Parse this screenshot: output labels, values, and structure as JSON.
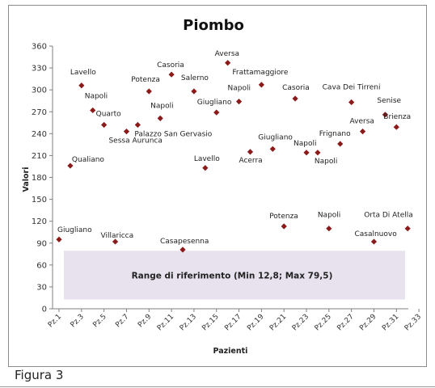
{
  "chart_data": {
    "type": "scatter",
    "title": "Piombo",
    "xlabel": "Pazienti",
    "ylabel": "Valori",
    "ylim": [
      0,
      360
    ],
    "y_ticks": [
      0,
      30,
      60,
      90,
      120,
      150,
      180,
      210,
      240,
      270,
      300,
      330,
      360
    ],
    "x_tick_labels": [
      "Pz.1",
      "Pz.3",
      "Pz.5",
      "Pz.7",
      "Pz.9",
      "Pz.11",
      "Pz.13",
      "Pz.15",
      "Pz.17",
      "Pz.19",
      "Pz.21",
      "Pz.23",
      "Pz.25",
      "Pz.27",
      "Pz.29",
      "Pz.31",
      "Pz.33"
    ],
    "grid": false,
    "marker_color": "#8b1a1a",
    "reference_band": {
      "label": "Range di riferimento (Min 12,8; Max 79,5)",
      "min": 12.8,
      "max": 79.5,
      "color": "#e8e2ef"
    },
    "points": [
      {
        "x": 1,
        "y": 95,
        "label": "Giugliano"
      },
      {
        "x": 2,
        "y": 196,
        "label": "Qualiano"
      },
      {
        "x": 3,
        "y": 306,
        "label": "Lavello"
      },
      {
        "x": 4,
        "y": 272,
        "label": "Napoli"
      },
      {
        "x": 5,
        "y": 252,
        "label": "Quarto"
      },
      {
        "x": 6,
        "y": 92,
        "label": "Villaricca"
      },
      {
        "x": 7,
        "y": 243,
        "label": "Sessa Aurunca"
      },
      {
        "x": 8,
        "y": 252,
        "label": "Palazzo San Gervasio"
      },
      {
        "x": 9,
        "y": 298,
        "label": "Potenza"
      },
      {
        "x": 10,
        "y": 261,
        "label": "Napoli"
      },
      {
        "x": 11,
        "y": 321,
        "label": "Casoria"
      },
      {
        "x": 12,
        "y": 81,
        "label": "Casapesenna"
      },
      {
        "x": 13,
        "y": 298,
        "label": "Salerno"
      },
      {
        "x": 14,
        "y": 193,
        "label": "Lavello"
      },
      {
        "x": 15,
        "y": 269,
        "label": "Giugliano"
      },
      {
        "x": 16,
        "y": 337,
        "label": "Aversa"
      },
      {
        "x": 17,
        "y": 284,
        "label": "Napoli"
      },
      {
        "x": 18,
        "y": 215,
        "label": "Acerra"
      },
      {
        "x": 19,
        "y": 307,
        "label": "Frattamaggiore"
      },
      {
        "x": 20,
        "y": 219,
        "label": "Giugliano"
      },
      {
        "x": 21,
        "y": 113,
        "label": "Potenza"
      },
      {
        "x": 22,
        "y": 288,
        "label": "Casoria"
      },
      {
        "x": 23,
        "y": 214,
        "label": "Napoli"
      },
      {
        "x": 24,
        "y": 214,
        "label": "Napoli"
      },
      {
        "x": 25,
        "y": 110,
        "label": "Napoli"
      },
      {
        "x": 26,
        "y": 226,
        "label": "Frignano"
      },
      {
        "x": 27,
        "y": 283,
        "label": "Cava Dei Tirreni"
      },
      {
        "x": 28,
        "y": 243,
        "label": "Aversa"
      },
      {
        "x": 29,
        "y": 92,
        "label": "Casalnuovo"
      },
      {
        "x": 30,
        "y": 266,
        "label": "Senise"
      },
      {
        "x": 31,
        "y": 249,
        "label": "Brienza"
      },
      {
        "x": 32,
        "y": 110,
        "label": "Orta Di Atella"
      }
    ]
  },
  "caption": "Figura 3"
}
